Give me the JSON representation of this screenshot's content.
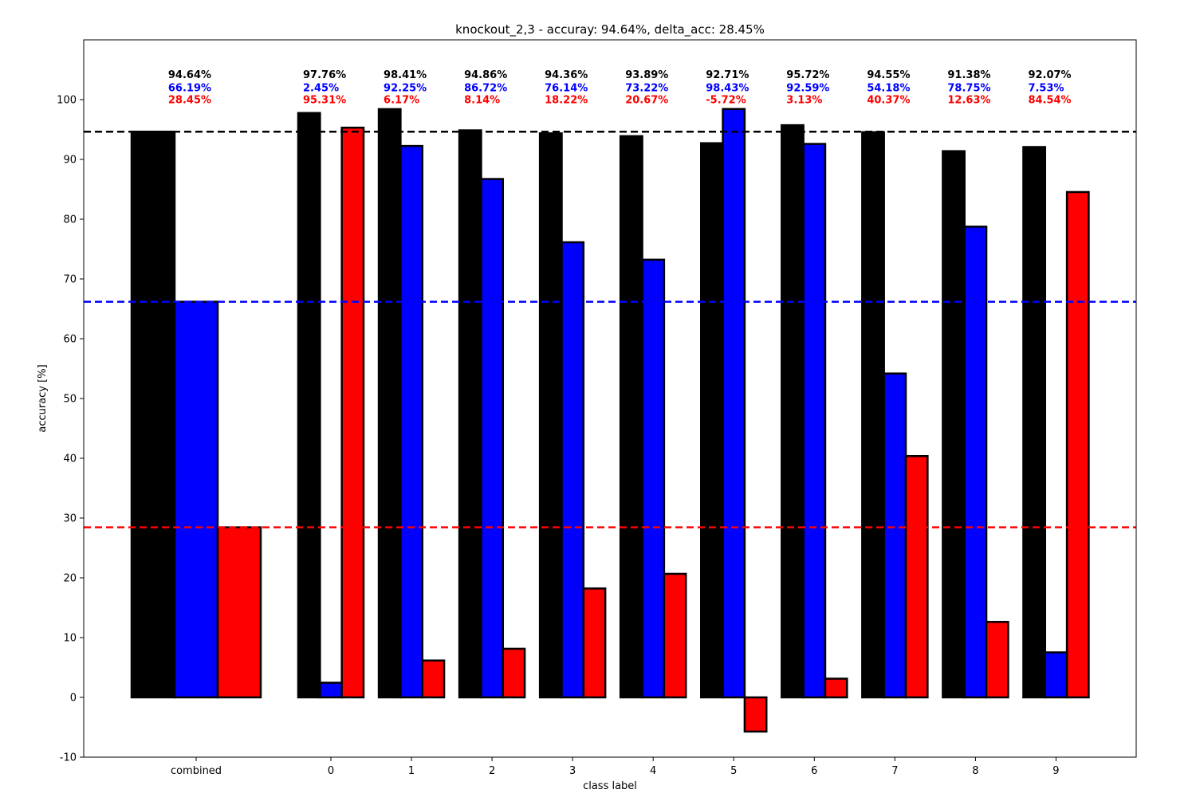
{
  "chart_data": {
    "type": "bar",
    "title": "knockout_2,3 - accuray: 94.64%, delta_acc: 28.45%",
    "xlabel": "class label",
    "ylabel": "accuracy [%]",
    "ylim": [
      -10,
      110
    ],
    "yticks": [
      -10,
      0,
      10,
      20,
      30,
      40,
      50,
      60,
      70,
      80,
      90,
      100
    ],
    "grid": false,
    "legend": "none",
    "categories": [
      "combined",
      "0",
      "1",
      "2",
      "3",
      "4",
      "5",
      "6",
      "7",
      "8",
      "9"
    ],
    "series": [
      {
        "color": "#000000",
        "values": [
          94.64,
          97.76,
          98.41,
          94.86,
          94.36,
          93.89,
          92.71,
          95.72,
          94.55,
          91.38,
          92.07
        ],
        "labels": [
          "94.64%",
          "97.76%",
          "98.41%",
          "94.86%",
          "94.36%",
          "93.89%",
          "92.71%",
          "95.72%",
          "94.55%",
          "91.38%",
          "92.07%"
        ]
      },
      {
        "color": "#0000ff",
        "values": [
          66.19,
          2.45,
          92.25,
          86.72,
          76.14,
          73.22,
          98.43,
          92.59,
          54.18,
          78.75,
          7.53
        ],
        "labels": [
          "66.19%",
          "2.45%",
          "92.25%",
          "86.72%",
          "76.14%",
          "73.22%",
          "98.43%",
          "92.59%",
          "54.18%",
          "78.75%",
          "7.53%"
        ]
      },
      {
        "color": "#ff0000",
        "values": [
          28.45,
          95.31,
          6.17,
          8.14,
          18.22,
          20.67,
          -5.72,
          3.13,
          40.37,
          12.63,
          84.54
        ],
        "labels": [
          "28.45%",
          "95.31%",
          "6.17%",
          "8.14%",
          "18.22%",
          "20.67%",
          "-5.72%",
          "3.13%",
          "40.37%",
          "12.63%",
          "84.54%"
        ]
      }
    ],
    "reference_lines": [
      {
        "value": 94.64,
        "color": "#000000",
        "style": "dashed"
      },
      {
        "value": 66.19,
        "color": "#0000ff",
        "style": "dashed"
      },
      {
        "value": 28.45,
        "color": "#ff0000",
        "style": "dashed"
      }
    ]
  }
}
